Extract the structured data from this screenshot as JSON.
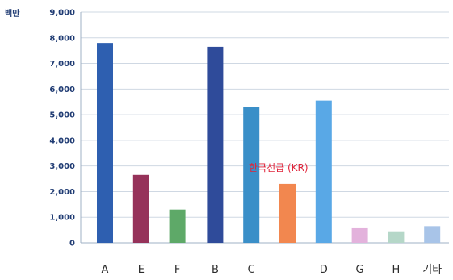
{
  "chart_data": {
    "type": "bar",
    "unit_label": "백만",
    "categories": [
      "A",
      "E",
      "F",
      "B",
      "C",
      "",
      "D",
      "G",
      "H",
      "기타"
    ],
    "values": [
      7800,
      2650,
      1300,
      7650,
      5300,
      2300,
      5550,
      600,
      450,
      650
    ],
    "colors": [
      "#2e5fb0",
      "#96325a",
      "#5ea968",
      "#2f4b9a",
      "#3a8fc8",
      "#f2874f",
      "#59a8e6",
      "#e3b2dc",
      "#b5d7c8",
      "#a8c4e8"
    ],
    "ylim": [
      0,
      9000
    ],
    "yticks": [
      0,
      1000,
      2000,
      3000,
      4000,
      5000,
      6000,
      7000,
      8000,
      9000
    ],
    "ytick_labels": [
      "0",
      "1,000",
      "2,000",
      "3,000",
      "4,000",
      "5,000",
      "6,000",
      "7,000",
      "8,000",
      "9,000"
    ],
    "grid": true,
    "annotation": "한국선급 (KR)"
  }
}
